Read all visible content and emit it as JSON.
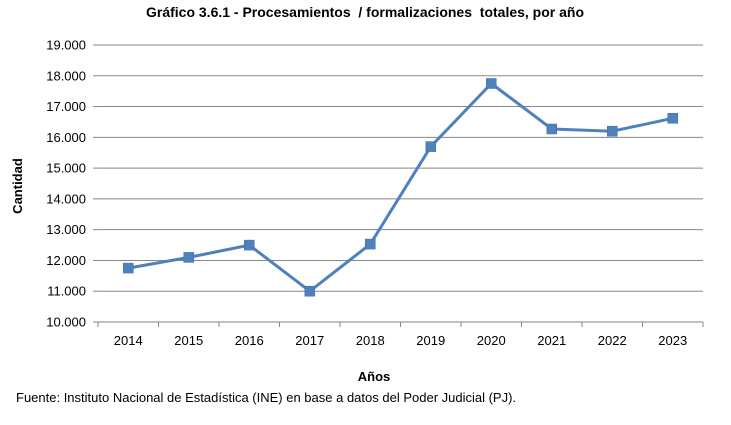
{
  "chart_data": {
    "type": "line",
    "title": "Gráfico 3.6.1 - Procesamientos  / formalizaciones  totales, por año",
    "xlabel": "Años",
    "ylabel": "Cantidad",
    "categories": [
      "2014",
      "2015",
      "2016",
      "2017",
      "2018",
      "2019",
      "2020",
      "2021",
      "2022",
      "2023"
    ],
    "values": [
      11750,
      12100,
      12500,
      11000,
      12530,
      15700,
      17750,
      16270,
      16200,
      16620
    ],
    "ylim": [
      10000,
      19000
    ],
    "yticks": [
      {
        "value": 10000,
        "label": "10.000"
      },
      {
        "value": 11000,
        "label": "11.000"
      },
      {
        "value": 12000,
        "label": "12.000"
      },
      {
        "value": 13000,
        "label": "13.000"
      },
      {
        "value": 14000,
        "label": "14.000"
      },
      {
        "value": 15000,
        "label": "15.000"
      },
      {
        "value": 16000,
        "label": "16.000"
      },
      {
        "value": 17000,
        "label": "17.000"
      },
      {
        "value": 18000,
        "label": "18.000"
      },
      {
        "value": 19000,
        "label": "19.000"
      }
    ],
    "grid": true,
    "legend": "none",
    "line_color": "#4F81BD",
    "marker": "square"
  },
  "source": "Fuente: Instituto Nacional de Estadística (INE) en base a datos del Poder Judicial (PJ)."
}
